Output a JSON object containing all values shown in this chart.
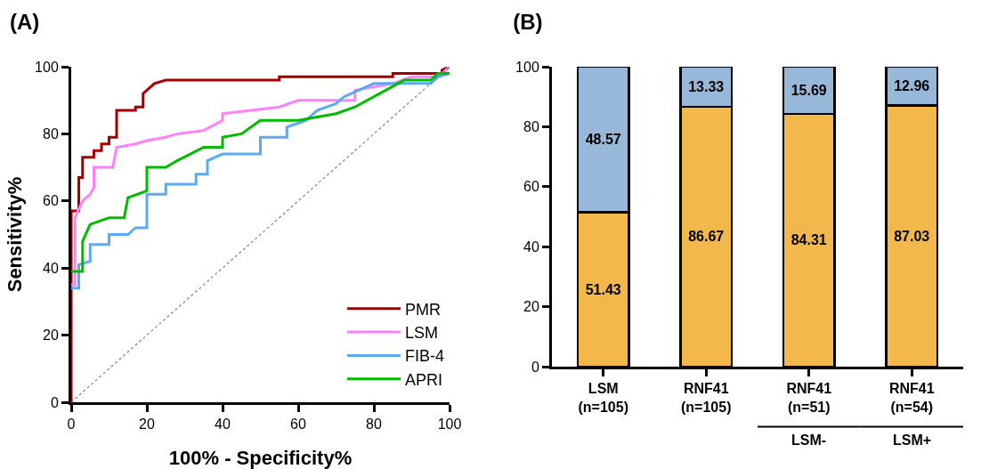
{
  "chart_data": [
    {
      "type": "line",
      "title": "(A)",
      "xlabel": "100% - Specificity%",
      "ylabel": "Sensitivity%",
      "xlim": [
        0,
        100
      ],
      "ylim": [
        0,
        100
      ],
      "xticks": [
        0,
        20,
        40,
        60,
        80,
        100
      ],
      "yticks": [
        0,
        20,
        40,
        60,
        80,
        100
      ],
      "grid": false,
      "legend": "bottom right",
      "line_style": "solid",
      "marker": "none",
      "series": [
        {
          "name": "PMR",
          "color": "#a50000",
          "x": [
            0,
            0,
            2,
            2,
            3,
            3,
            6,
            6,
            8,
            8,
            10,
            10,
            12,
            12,
            17,
            17,
            19,
            19,
            22,
            25,
            55,
            55,
            85,
            85,
            98,
            98,
            100
          ],
          "values": [
            0,
            57,
            57,
            67,
            67,
            73,
            73,
            75,
            75,
            77,
            77,
            79,
            79,
            87,
            87,
            88,
            88,
            92,
            95,
            96,
            96,
            97,
            97,
            98,
            98,
            99,
            100
          ]
        },
        {
          "name": "LSM",
          "color": "#ff80ff",
          "x": [
            0,
            1,
            1,
            3,
            5,
            6,
            6,
            11,
            12,
            17,
            20,
            25,
            28,
            35,
            40,
            40,
            55,
            60,
            75,
            75,
            85,
            90,
            97,
            100
          ],
          "values": [
            35,
            35,
            55,
            60,
            62,
            64,
            70,
            70,
            76,
            77,
            78,
            79,
            80,
            81,
            84,
            86,
            88,
            90,
            90,
            93,
            95,
            97,
            97,
            100
          ]
        },
        {
          "name": "FIB-4",
          "color": "#5aabf5",
          "x": [
            0,
            2,
            2,
            5,
            5,
            10,
            10,
            15,
            17,
            20,
            20,
            25,
            25,
            33,
            33,
            36,
            36,
            40,
            50,
            50,
            57,
            57,
            62,
            65,
            70,
            72,
            80,
            95,
            97,
            100
          ],
          "values": [
            34,
            34,
            41,
            42,
            47,
            47,
            50,
            50,
            52,
            52,
            62,
            62,
            65,
            65,
            68,
            68,
            72,
            74,
            74,
            79,
            79,
            82,
            84,
            87,
            89,
            91,
            95,
            95,
            97,
            98
          ]
        },
        {
          "name": "APRI",
          "color": "#00bb00",
          "x": [
            0,
            3,
            3,
            5,
            10,
            14,
            15,
            20,
            20,
            25,
            28,
            35,
            40,
            40,
            45,
            50,
            60,
            70,
            75,
            88,
            95,
            97,
            100
          ],
          "values": [
            39,
            39,
            48,
            53,
            55,
            55,
            61,
            63,
            70,
            70,
            72,
            76,
            76,
            79,
            80,
            84,
            84,
            86,
            88,
            96,
            96,
            98,
            98
          ]
        },
        {
          "color": "#808080",
          "line_style": "dotted",
          "x": [
            0,
            100
          ],
          "values": [
            0,
            100
          ]
        }
      ]
    },
    {
      "type": "bar",
      "stacked": true,
      "title": "(B)",
      "categories": [
        "LSM\n(n=105)",
        "RNF41\n(n=105)",
        "RNF41\n(n=51)",
        "RNF41\n(n=54)"
      ],
      "ylim": [
        0,
        100
      ],
      "yticks": [
        0,
        20,
        40,
        60,
        80,
        100
      ],
      "grid": false,
      "legend": false,
      "data_labels": true,
      "series": [
        {
          "color": "#f2b84b",
          "values": [
            51.43,
            86.67,
            84.31,
            87.03
          ]
        },
        {
          "color": "#97b8d8",
          "values": [
            48.57,
            13.33,
            15.69,
            12.96
          ]
        }
      ],
      "annotations": [
        "LSM-",
        "LSM+"
      ]
    }
  ]
}
